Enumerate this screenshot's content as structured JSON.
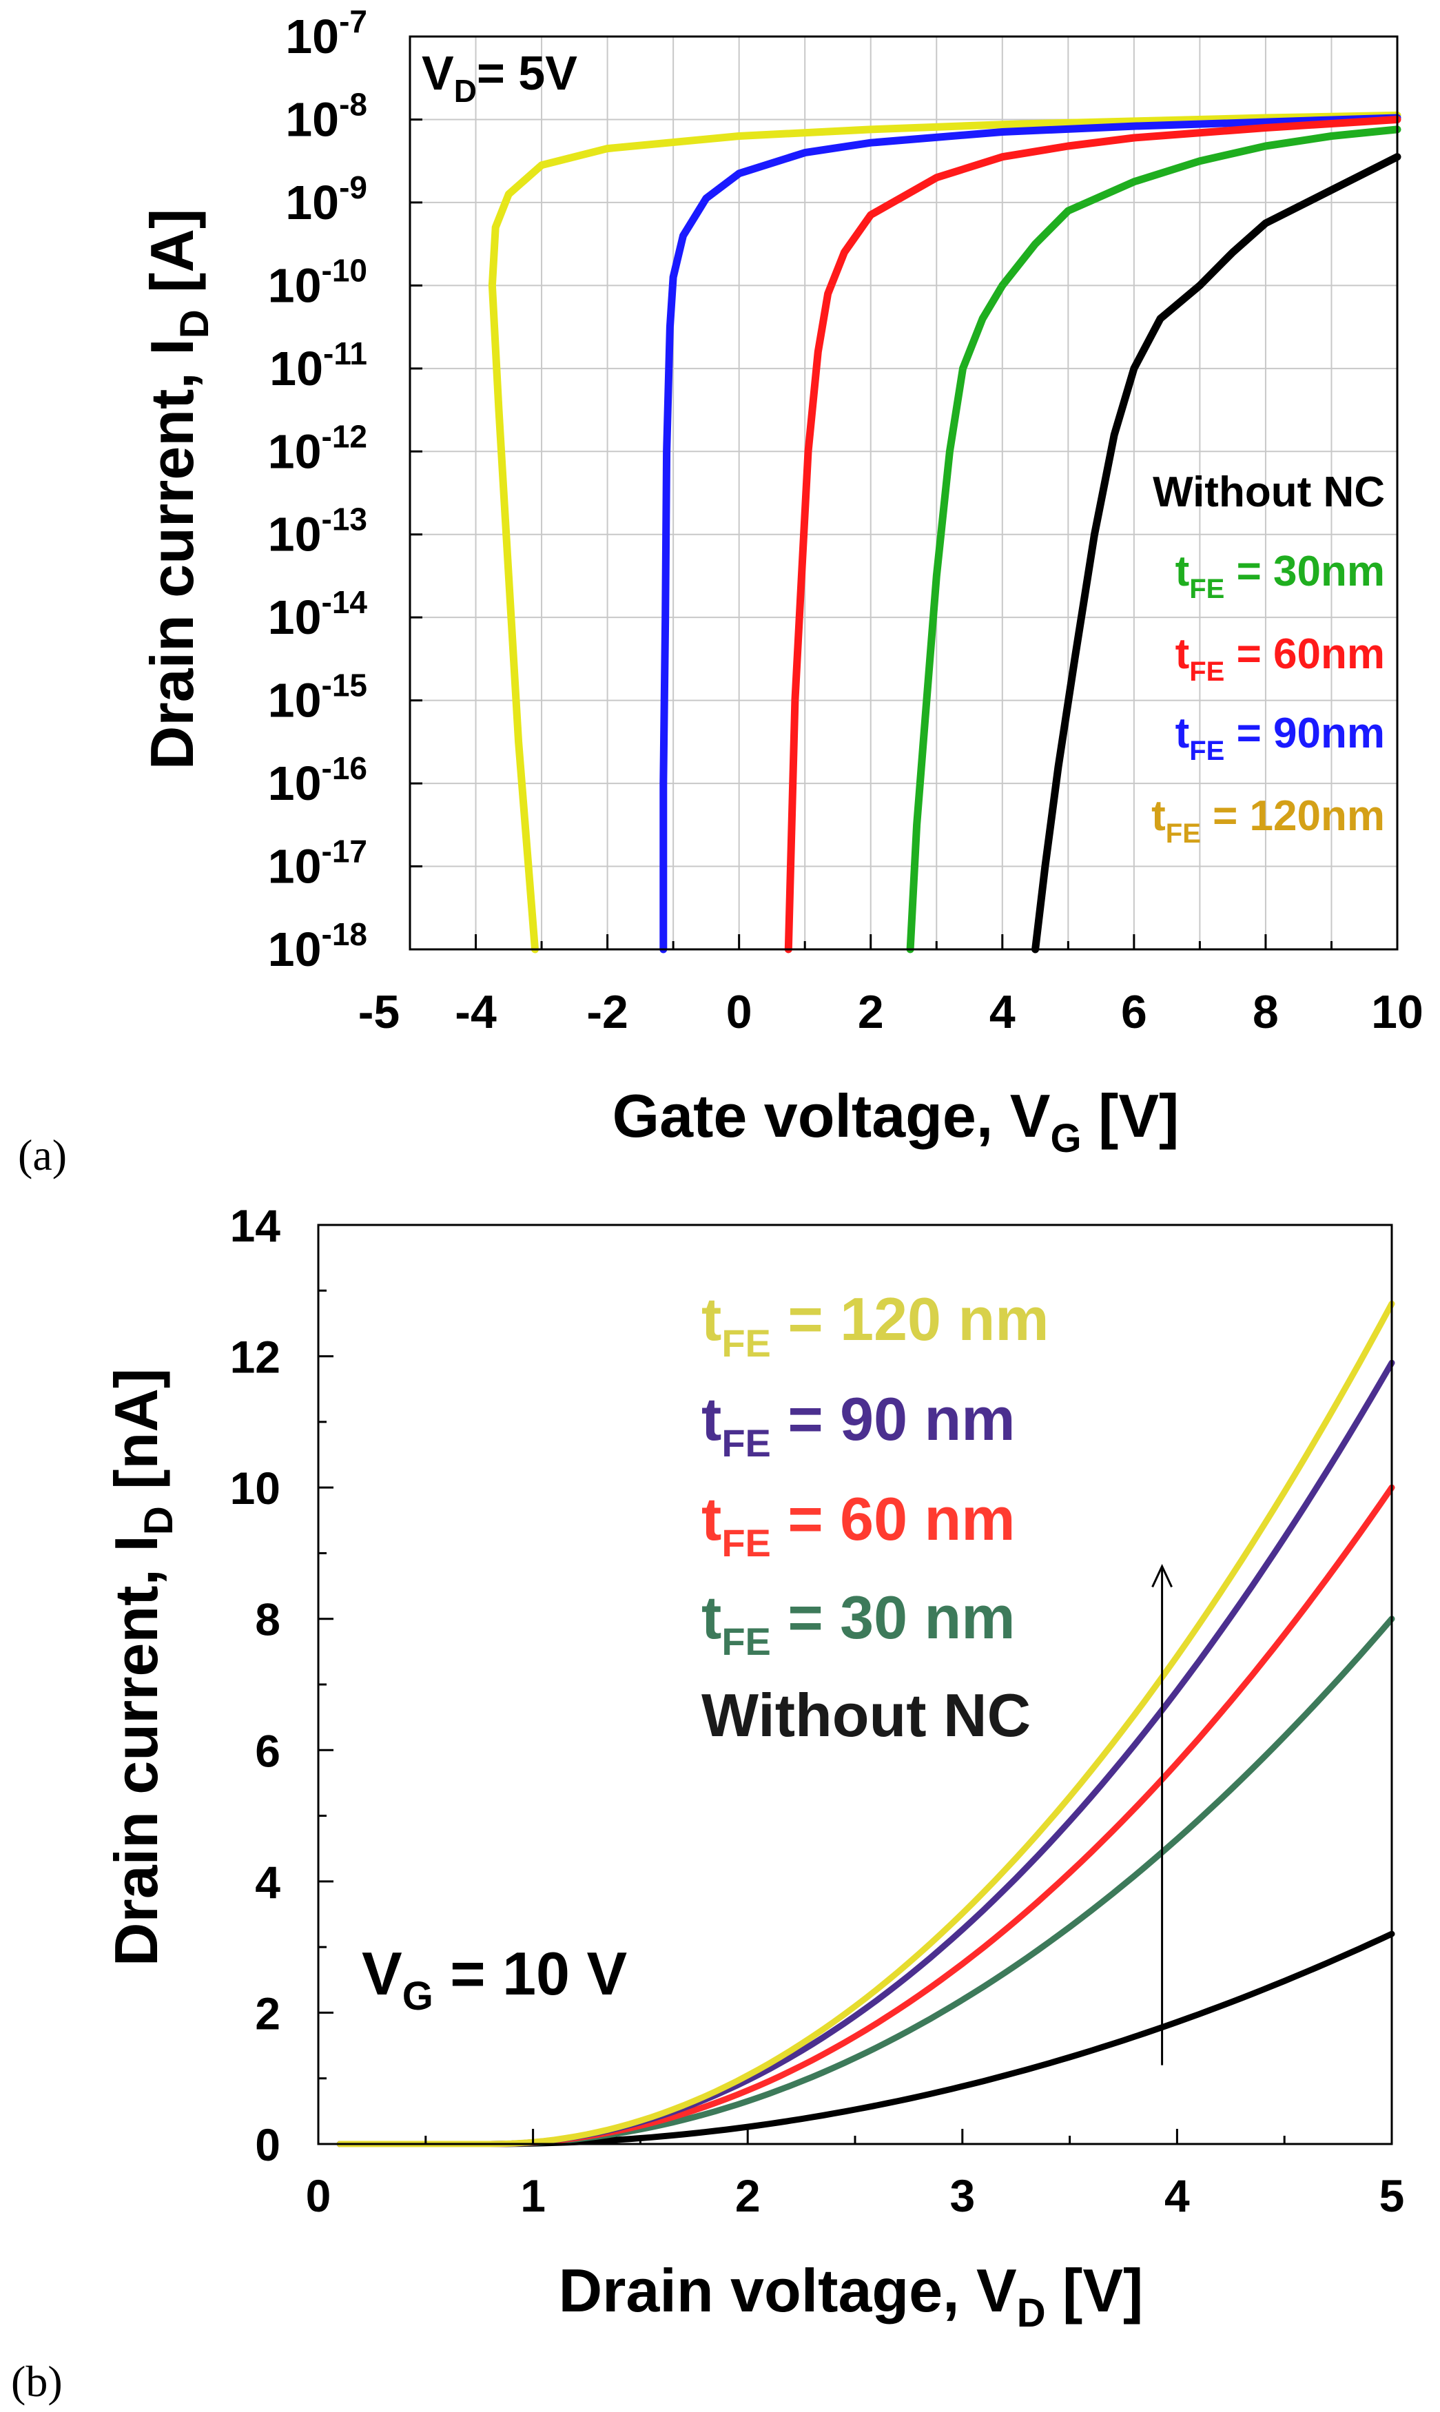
{
  "chart_data": [
    {
      "panel": "(a)",
      "type": "line",
      "title": "",
      "xlabel": "Gate voltage, V",
      "xlabel_sub": "G",
      "xlabel_unit": " [V]",
      "ylabel": "Drain current, I",
      "ylabel_sub": "D",
      "ylabel_unit": " [A]",
      "xlim": [
        -5,
        10
      ],
      "ylim_log10": [
        -18,
        -7
      ],
      "yscale": "log",
      "grid": true,
      "x_ticks": [
        "-5",
        "-4",
        "-2",
        "0",
        "2",
        "4",
        "6",
        "8",
        "10"
      ],
      "x_tick_values": [
        -5,
        -4,
        -2,
        0,
        2,
        4,
        6,
        8,
        10
      ],
      "y_tick_exponents": [
        "-7",
        "-8",
        "-9",
        "-10",
        "-11",
        "-12",
        "-13",
        "-14",
        "-15",
        "-16",
        "-17",
        "-18"
      ],
      "y_tick_base": "10",
      "annotation": {
        "text": "V",
        "sub": "D",
        "rest": "= 5V"
      },
      "legend": [
        {
          "text": "Without NC",
          "color": "#000000"
        },
        {
          "text": "t",
          "sub": "FE",
          "rest": " = 30nm",
          "color": "#1fae1f"
        },
        {
          "text": "t",
          "sub": "FE",
          "rest": " = 60nm",
          "color": "#ff1a1a"
        },
        {
          "text": "t",
          "sub": "FE",
          "rest": " = 90nm",
          "color": "#1a1aff"
        },
        {
          "text": "t",
          "sub": "FE",
          "rest": " = 120nm",
          "color": "#d4a017"
        }
      ],
      "series": [
        {
          "name": "t_FE = 120nm",
          "color": "#e6e61a",
          "points": [
            [
              -3.1,
              -18
            ],
            [
              -3.2,
              -17
            ],
            [
              -3.35,
              -15.5
            ],
            [
              -3.5,
              -13.5
            ],
            [
              -3.65,
              -11.5
            ],
            [
              -3.75,
              -10
            ],
            [
              -3.7,
              -9.3
            ],
            [
              -3.5,
              -8.9
            ],
            [
              -3.0,
              -8.55
            ],
            [
              -2.0,
              -8.35
            ],
            [
              0,
              -8.2
            ],
            [
              2,
              -8.12
            ],
            [
              4,
              -8.06
            ],
            [
              6,
              -8.02
            ],
            [
              8,
              -7.98
            ],
            [
              10,
              -7.95
            ]
          ]
        },
        {
          "name": "t_FE = 90nm",
          "color": "#1a1aff",
          "points": [
            [
              -1.15,
              -18
            ],
            [
              -1.15,
              -16
            ],
            [
              -1.12,
              -14
            ],
            [
              -1.1,
              -12
            ],
            [
              -1.05,
              -10.5
            ],
            [
              -1.0,
              -9.9
            ],
            [
              -0.85,
              -9.4
            ],
            [
              -0.5,
              -8.95
            ],
            [
              0,
              -8.65
            ],
            [
              1,
              -8.4
            ],
            [
              2,
              -8.28
            ],
            [
              4,
              -8.15
            ],
            [
              6,
              -8.08
            ],
            [
              8,
              -8.03
            ],
            [
              10,
              -7.98
            ]
          ]
        },
        {
          "name": "t_FE = 60nm",
          "color": "#ff1a1a",
          "points": [
            [
              0.75,
              -18
            ],
            [
              0.8,
              -16.5
            ],
            [
              0.85,
              -15
            ],
            [
              0.95,
              -13.5
            ],
            [
              1.05,
              -12
            ],
            [
              1.2,
              -10.8
            ],
            [
              1.35,
              -10.1
            ],
            [
              1.6,
              -9.6
            ],
            [
              2.0,
              -9.15
            ],
            [
              3,
              -8.7
            ],
            [
              4,
              -8.45
            ],
            [
              5,
              -8.32
            ],
            [
              6,
              -8.22
            ],
            [
              8,
              -8.1
            ],
            [
              10,
              -8.0
            ]
          ]
        },
        {
          "name": "t_FE = 30nm",
          "color": "#1fae1f",
          "points": [
            [
              2.6,
              -18
            ],
            [
              2.7,
              -16.5
            ],
            [
              2.85,
              -15
            ],
            [
              3.0,
              -13.5
            ],
            [
              3.2,
              -12
            ],
            [
              3.4,
              -11
            ],
            [
              3.7,
              -10.4
            ],
            [
              4.0,
              -10.0
            ],
            [
              4.5,
              -9.5
            ],
            [
              5.0,
              -9.1
            ],
            [
              6.0,
              -8.75
            ],
            [
              7,
              -8.5
            ],
            [
              8,
              -8.32
            ],
            [
              9,
              -8.2
            ],
            [
              10,
              -8.12
            ]
          ]
        },
        {
          "name": "Without NC",
          "color": "#000000",
          "points": [
            [
              4.5,
              -18
            ],
            [
              4.65,
              -17
            ],
            [
              4.85,
              -15.8
            ],
            [
              5.1,
              -14.5
            ],
            [
              5.4,
              -13
            ],
            [
              5.7,
              -11.8
            ],
            [
              6.0,
              -11.0
            ],
            [
              6.4,
              -10.4
            ],
            [
              7.0,
              -10.0
            ],
            [
              7.5,
              -9.6
            ],
            [
              8.0,
              -9.25
            ],
            [
              9.0,
              -8.85
            ],
            [
              10,
              -8.45
            ]
          ]
        }
      ]
    },
    {
      "panel": "(b)",
      "type": "line",
      "title": "",
      "xlabel": "Drain voltage, V",
      "xlabel_sub": "D",
      "xlabel_unit": " [V]",
      "ylabel": "Drain current, I",
      "ylabel_sub": "D",
      "ylabel_unit": " [nA]",
      "xlim": [
        0,
        5
      ],
      "ylim": [
        0,
        14
      ],
      "grid": false,
      "x_ticks": [
        "0",
        "1",
        "2",
        "3",
        "4",
        "5"
      ],
      "y_ticks": [
        "0",
        "2",
        "4",
        "6",
        "8",
        "10",
        "12",
        "14"
      ],
      "annotation": {
        "text": "V",
        "sub": "G",
        "rest": " = 10 V"
      },
      "arrow": {
        "x": 3.93,
        "y_from": 1.2,
        "y_to": 8.8
      },
      "legend": [
        {
          "text": "t",
          "sub": "FE",
          "rest": " = 120 nm",
          "color": "#d8d14a"
        },
        {
          "text": "t",
          "sub": "FE",
          "rest": " = 90 nm",
          "color": "#4b2f8f"
        },
        {
          "text": "t",
          "sub": "FE",
          "rest": " = 60 nm",
          "color": "#ff3b30"
        },
        {
          "text": "t",
          "sub": "FE",
          "rest": " = 30 nm",
          "color": "#3d7a5a"
        },
        {
          "text": "Without NC",
          "color": "#1a1a1a"
        }
      ],
      "series": [
        {
          "name": "Without NC",
          "color": "#000000",
          "v0": 0.8,
          "vmax": 5,
          "imax": 3.2
        },
        {
          "name": "t_FE = 30 nm",
          "color": "#3d7a5a",
          "v0": 0.8,
          "vmax": 5,
          "imax": 8.0
        },
        {
          "name": "t_FE = 60 nm",
          "color": "#ff2a2a",
          "v0": 0.8,
          "vmax": 5,
          "imax": 10.0
        },
        {
          "name": "t_FE = 90 nm",
          "color": "#4b2f8f",
          "v0": 0.8,
          "vmax": 5,
          "imax": 11.9
        },
        {
          "name": "t_FE = 120 nm",
          "color": "#e6dc2e",
          "v0": 0.8,
          "vmax": 5,
          "imax": 12.8
        }
      ]
    }
  ]
}
